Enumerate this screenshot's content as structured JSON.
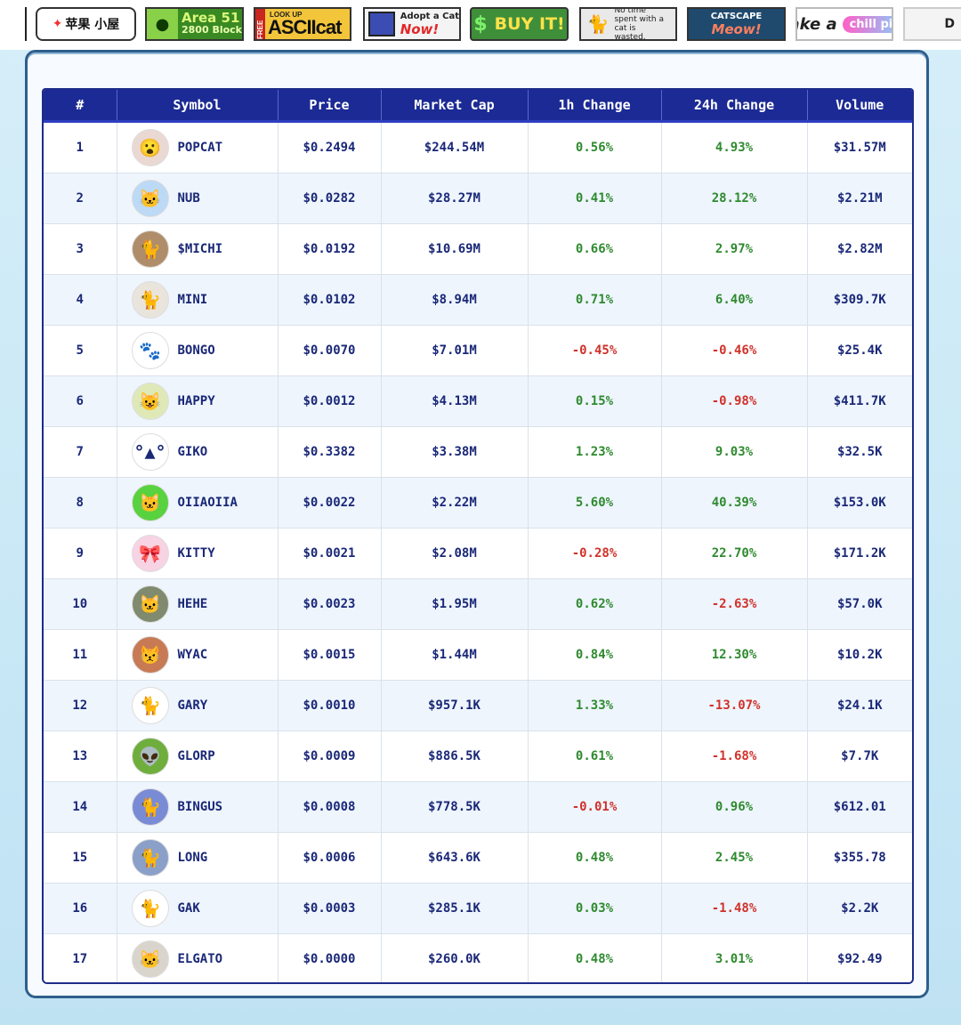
{
  "banners": [
    {
      "name": "banner-ringo-koya",
      "text": "苹果 小屋"
    },
    {
      "name": "banner-area51",
      "text": "Area 51",
      "sub": "2800 Block"
    },
    {
      "name": "banner-asciicat",
      "top": "LOOK UP",
      "text": "ASCIIcat",
      "side": "FREE"
    },
    {
      "name": "banner-adopt-cat",
      "text": "Adopt a Cat",
      "now": "Now!"
    },
    {
      "name": "banner-buy-it",
      "text": "BUY IT!"
    },
    {
      "name": "banner-no-time",
      "text": "No time spent with a cat is wasted."
    },
    {
      "name": "banner-catscape",
      "text": "CATSCAPE",
      "meow": "Meow!"
    },
    {
      "name": "banner-chill-pill",
      "text": "take a",
      "pill": "chill pill"
    },
    {
      "name": "banner-cut-off",
      "text": "D"
    }
  ],
  "table": {
    "headers": [
      "#",
      "Symbol",
      "Price",
      "Market Cap",
      "1h Change",
      "24h Change",
      "Volume"
    ],
    "rows": [
      {
        "rank": "1",
        "symbol": "POPCAT",
        "icon": "popcat-icon",
        "avatar_color": "#ead9d2",
        "glyph": "😮",
        "price": "$0.2494",
        "mcap": "$244.54M",
        "h1": "0.56%",
        "h24": "4.93%",
        "volume": "$31.57M"
      },
      {
        "rank": "2",
        "symbol": "NUB",
        "icon": "nub-icon",
        "avatar_color": "#bcd9f5",
        "glyph": "🐱",
        "price": "$0.0282",
        "mcap": "$28.27M",
        "h1": "0.41%",
        "h24": "28.12%",
        "volume": "$2.21M"
      },
      {
        "rank": "3",
        "symbol": "$MICHI",
        "icon": "michi-icon",
        "avatar_color": "#b08d6a",
        "glyph": "🐈",
        "price": "$0.0192",
        "mcap": "$10.69M",
        "h1": "0.66%",
        "h24": "2.97%",
        "volume": "$2.82M"
      },
      {
        "rank": "4",
        "symbol": "MINI",
        "icon": "mini-icon",
        "avatar_color": "#e9e4dc",
        "glyph": "🐈",
        "price": "$0.0102",
        "mcap": "$8.94M",
        "h1": "0.71%",
        "h24": "6.40%",
        "volume": "$309.7K"
      },
      {
        "rank": "5",
        "symbol": "BONGO",
        "icon": "bongo-icon",
        "avatar_color": "#ffffff",
        "glyph": "🐾",
        "price": "$0.0070",
        "mcap": "$7.01M",
        "h1": "-0.45%",
        "h24": "-0.46%",
        "volume": "$25.4K"
      },
      {
        "rank": "6",
        "symbol": "HAPPY",
        "icon": "happy-icon",
        "avatar_color": "#dfe9b8",
        "glyph": "😺",
        "price": "$0.0012",
        "mcap": "$4.13M",
        "h1": "0.15%",
        "h24": "-0.98%",
        "volume": "$411.7K"
      },
      {
        "rank": "7",
        "symbol": "GIKO",
        "icon": "giko-icon",
        "avatar_color": "#ffffff",
        "glyph": "°▲°",
        "price": "$0.3382",
        "mcap": "$3.38M",
        "h1": "1.23%",
        "h24": "9.03%",
        "volume": "$32.5K"
      },
      {
        "rank": "8",
        "symbol": "OIIAOIIA",
        "icon": "oiiaoiia-icon",
        "avatar_color": "#58d23f",
        "glyph": "🐱",
        "price": "$0.0022",
        "mcap": "$2.22M",
        "h1": "5.60%",
        "h24": "40.39%",
        "volume": "$153.0K"
      },
      {
        "rank": "9",
        "symbol": "KITTY",
        "icon": "kitty-icon",
        "avatar_color": "#f7d3e3",
        "glyph": "🎀",
        "price": "$0.0021",
        "mcap": "$2.08M",
        "h1": "-0.28%",
        "h24": "22.70%",
        "volume": "$171.2K"
      },
      {
        "rank": "10",
        "symbol": "HEHE",
        "icon": "hehe-icon",
        "avatar_color": "#7f8a6e",
        "glyph": "🐱",
        "price": "$0.0023",
        "mcap": "$1.95M",
        "h1": "0.62%",
        "h24": "-2.63%",
        "volume": "$57.0K"
      },
      {
        "rank": "11",
        "symbol": "WYAC",
        "icon": "wyac-icon",
        "avatar_color": "#c87a55",
        "glyph": "😾",
        "price": "$0.0015",
        "mcap": "$1.44M",
        "h1": "0.84%",
        "h24": "12.30%",
        "volume": "$10.2K"
      },
      {
        "rank": "12",
        "symbol": "GARY",
        "icon": "gary-icon",
        "avatar_color": "#ffffff",
        "glyph": "🐈",
        "price": "$0.0010",
        "mcap": "$957.1K",
        "h1": "1.33%",
        "h24": "-13.07%",
        "volume": "$24.1K"
      },
      {
        "rank": "13",
        "symbol": "GLORP",
        "icon": "glorp-icon",
        "avatar_color": "#6fae3c",
        "glyph": "👽",
        "price": "$0.0009",
        "mcap": "$886.5K",
        "h1": "0.61%",
        "h24": "-1.68%",
        "volume": "$7.7K"
      },
      {
        "rank": "14",
        "symbol": "BINGUS",
        "icon": "bingus-icon",
        "avatar_color": "#7a8bd6",
        "glyph": "🐈",
        "price": "$0.0008",
        "mcap": "$778.5K",
        "h1": "-0.01%",
        "h24": "0.96%",
        "volume": "$612.01"
      },
      {
        "rank": "15",
        "symbol": "LONG",
        "icon": "long-icon",
        "avatar_color": "#8aa0c8",
        "glyph": "🐈",
        "price": "$0.0006",
        "mcap": "$643.6K",
        "h1": "0.48%",
        "h24": "2.45%",
        "volume": "$355.78"
      },
      {
        "rank": "16",
        "symbol": "GAK",
        "icon": "gak-icon",
        "avatar_color": "#ffffff",
        "glyph": "🐈",
        "price": "$0.0003",
        "mcap": "$285.1K",
        "h1": "0.03%",
        "h24": "-1.48%",
        "volume": "$2.2K"
      },
      {
        "rank": "17",
        "symbol": "ELGATO",
        "icon": "elgato-icon",
        "avatar_color": "#d9d4cc",
        "glyph": "🐱",
        "price": "$0.0000",
        "mcap": "$260.0K",
        "h1": "0.48%",
        "h24": "3.01%",
        "volume": "$92.49"
      }
    ]
  },
  "colors": {
    "header_bg": "#1b2a94",
    "positive": "#2f8a2f",
    "negative": "#d0322b",
    "text": "#1a2877"
  }
}
